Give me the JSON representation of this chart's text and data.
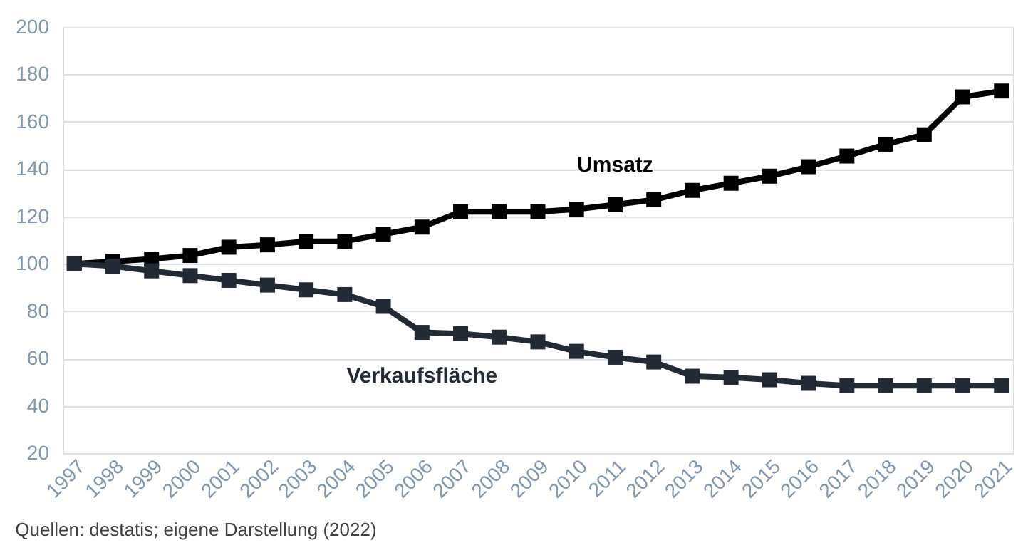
{
  "chart_data": {
    "type": "line",
    "categories": [
      "1997",
      "1998",
      "1999",
      "2000",
      "2001",
      "2002",
      "2003",
      "2004",
      "2005",
      "2006",
      "2007",
      "2008",
      "2009",
      "2010",
      "2011",
      "2012",
      "2013",
      "2014",
      "2015",
      "2016",
      "2017",
      "2018",
      "2019",
      "2020",
      "2021"
    ],
    "series": [
      {
        "name": "Umsatz",
        "color": "#000000",
        "values": [
          100,
          101,
          102,
          103.5,
          107,
          108,
          109.5,
          109.5,
          112.5,
          115.5,
          122,
          122,
          122,
          123,
          125,
          127,
          131,
          134,
          137,
          141,
          145.5,
          150.5,
          154.5,
          170.5,
          173
        ]
      },
      {
        "name": "Verkaufsfläche",
        "color": "#222a35",
        "values": [
          100,
          99,
          97,
          95,
          93,
          91,
          89,
          87,
          82,
          71,
          70.5,
          69,
          67,
          63,
          60.5,
          58.5,
          52.5,
          52,
          51,
          49.5,
          48.5,
          48.5,
          48.5,
          48.5,
          48.5
        ]
      }
    ],
    "ylim": [
      20,
      200
    ],
    "yticks": [
      20,
      40,
      60,
      80,
      100,
      120,
      140,
      160,
      180,
      200
    ],
    "grid": "y",
    "legend": false,
    "marker": "square",
    "line_style": "solid",
    "annotations": [
      "Quellen: destatis; eigene Darstellung (2022)"
    ]
  }
}
